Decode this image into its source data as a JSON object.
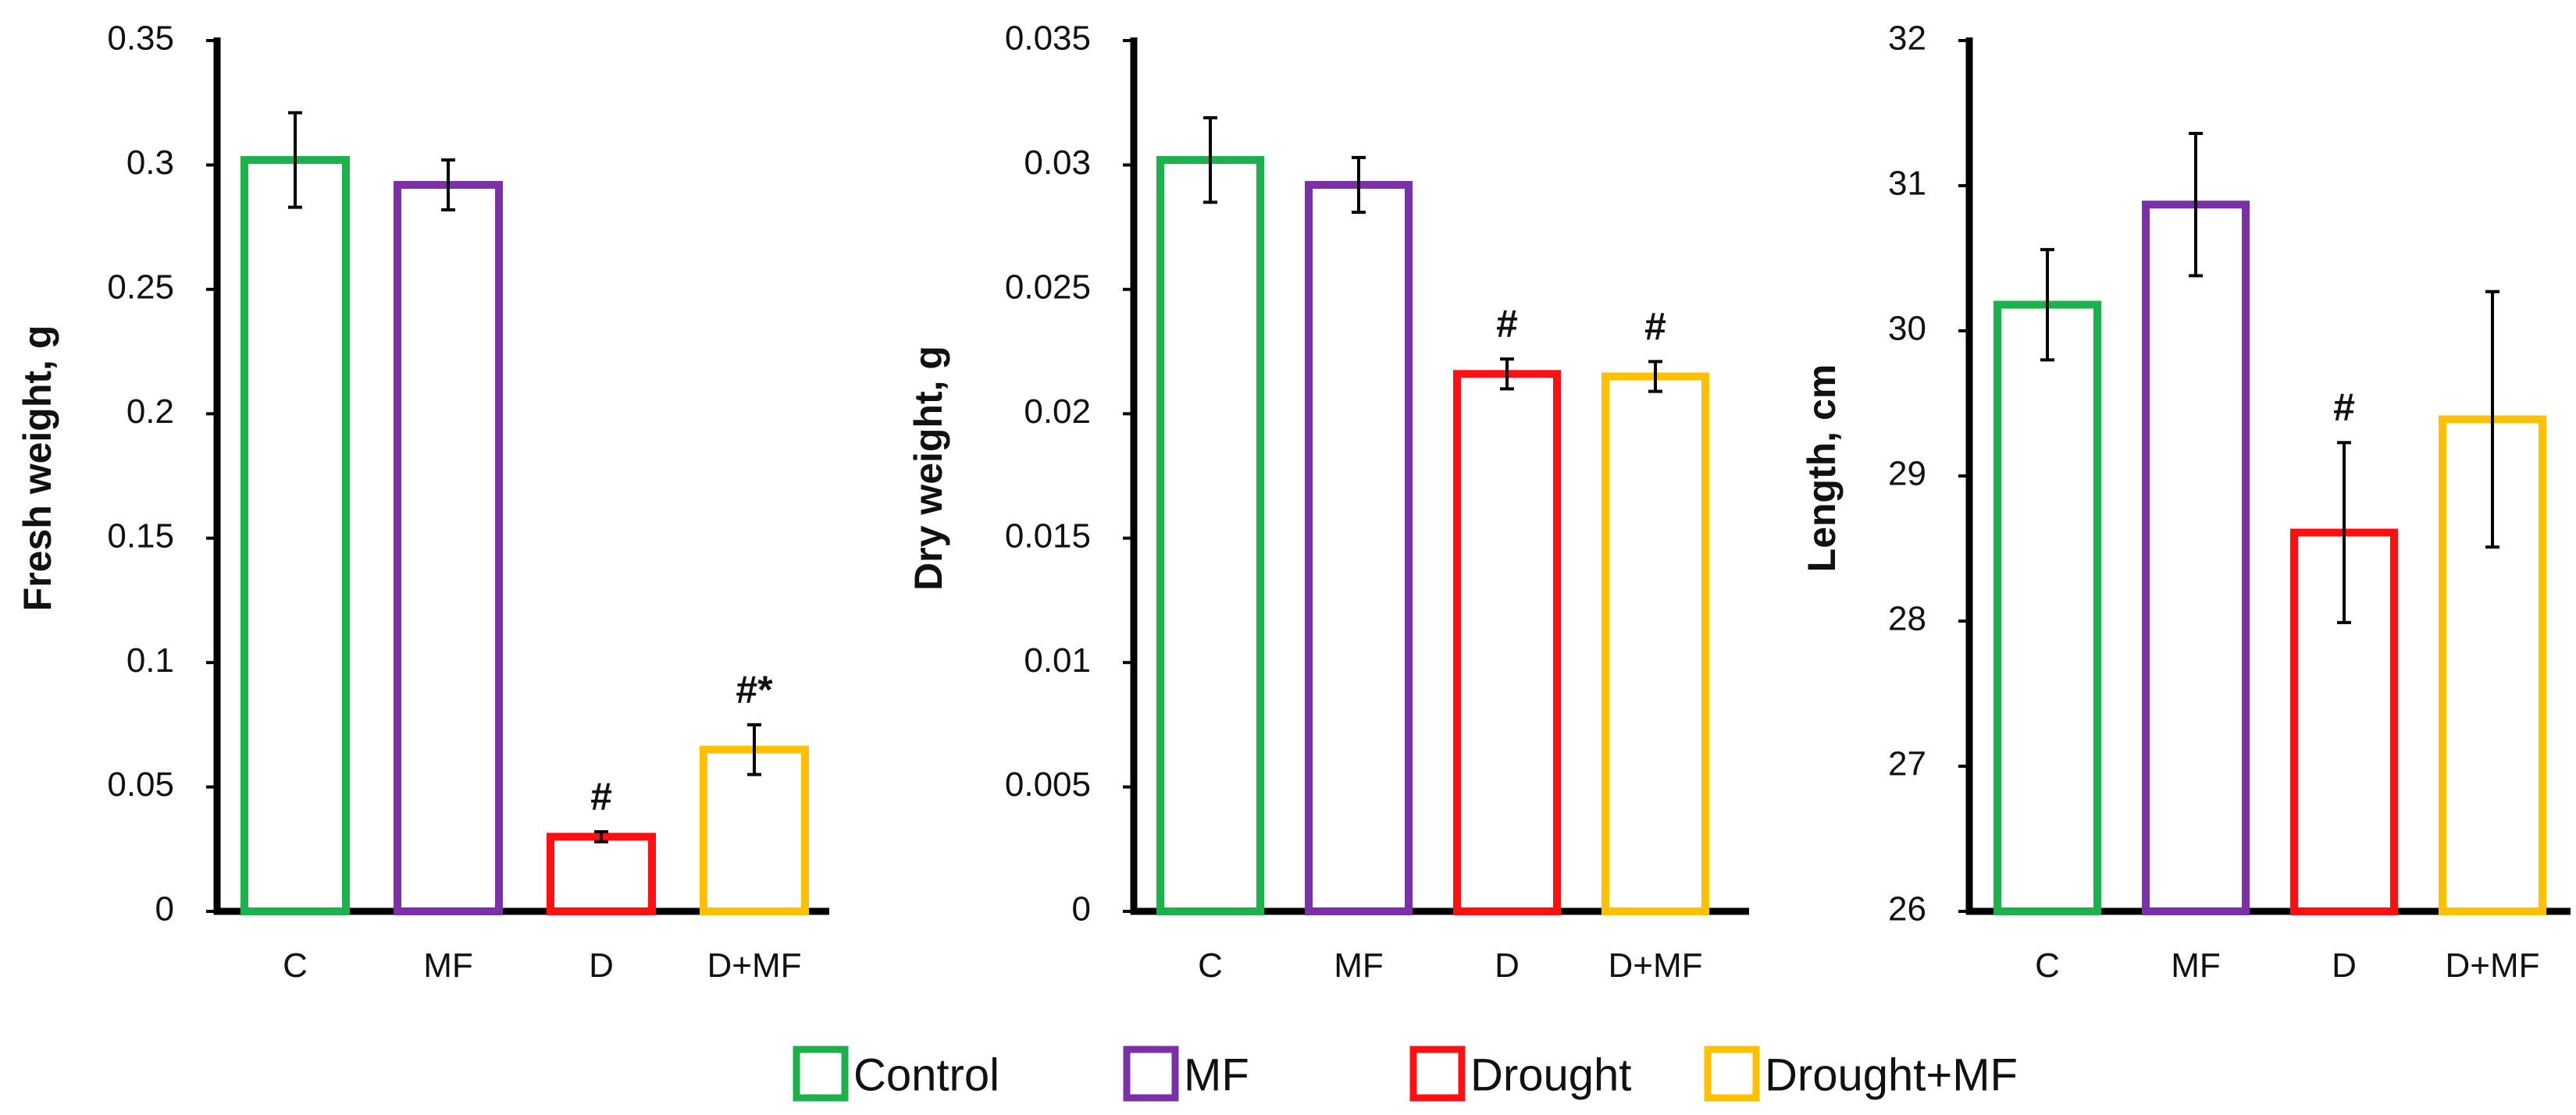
{
  "chart_data": [
    {
      "type": "bar",
      "title": "",
      "xlabel": "",
      "ylabel": "Fresh weight, g",
      "categories": [
        "C",
        "MF",
        "D",
        "D+MF"
      ],
      "values": [
        0.302,
        0.292,
        0.03,
        0.065
      ],
      "errors": [
        0.019,
        0.01,
        0.002,
        0.01
      ],
      "annotations": [
        "",
        "",
        "#",
        "#*"
      ],
      "ylim": [
        0,
        0.35
      ],
      "yticks": [
        0,
        0.05,
        0.1,
        0.15,
        0.2,
        0.25,
        0.3,
        0.35
      ],
      "ytick_labels": [
        "0",
        "0.05",
        "0.1",
        "0.15",
        "0.2",
        "0.25",
        "0.3",
        "0.35"
      ]
    },
    {
      "type": "bar",
      "title": "",
      "xlabel": "",
      "ylabel": "Dry weight, g",
      "categories": [
        "C",
        "MF",
        "D",
        "D+MF"
      ],
      "values": [
        0.0302,
        0.0292,
        0.0216,
        0.0215
      ],
      "errors": [
        0.0017,
        0.0011,
        0.0006,
        0.0006
      ],
      "annotations": [
        "",
        "",
        "#",
        "#"
      ],
      "ylim": [
        0,
        0.035
      ],
      "yticks": [
        0,
        0.005,
        0.01,
        0.015,
        0.02,
        0.025,
        0.03,
        0.035
      ],
      "ytick_labels": [
        "0",
        "0.005",
        "0.01",
        "0.015",
        "0.02",
        "0.025",
        "0.03",
        "0.035"
      ]
    },
    {
      "type": "bar",
      "title": "",
      "xlabel": "",
      "ylabel": "Length, cm",
      "categories": [
        "C",
        "MF",
        "D",
        "D+MF"
      ],
      "values": [
        30.18,
        30.87,
        28.61,
        29.39
      ],
      "errors": [
        0.38,
        0.49,
        0.62,
        0.88
      ],
      "annotations": [
        "",
        "",
        "#",
        ""
      ],
      "ylim": [
        26,
        32
      ],
      "yticks": [
        26,
        27,
        28,
        29,
        30,
        31,
        32
      ],
      "ytick_labels": [
        "26",
        "27",
        "28",
        "29",
        "30",
        "31",
        "32"
      ]
    }
  ],
  "legend": {
    "placement": "bottom",
    "items": [
      {
        "label": "Control",
        "color": "#1cb24b"
      },
      {
        "label": "MF",
        "color": "#7b2fa8"
      },
      {
        "label": "Drought",
        "color": "#ff1010"
      },
      {
        "label": "Drought+MF",
        "color": "#ffc000"
      }
    ]
  },
  "colors": [
    "#1cb24b",
    "#7b2fa8",
    "#ff1010",
    "#ffc000"
  ]
}
